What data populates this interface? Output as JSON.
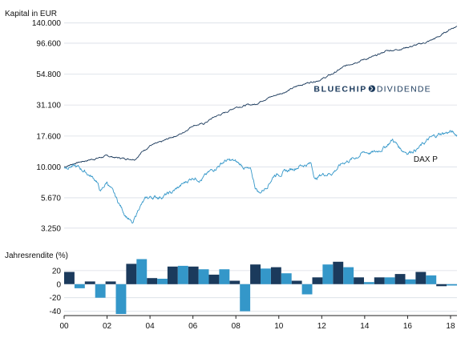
{
  "colors": {
    "strategy": "#1b3a5c",
    "index": "#3497c9",
    "background": "#ffffff",
    "grid": "#d9dee6",
    "axis": "#222222",
    "text": "#111111"
  },
  "chart_data": [
    {
      "type": "line",
      "ylabel": "Kapital in EUR",
      "y_scale": "log",
      "yticks": [
        "140.000",
        "96.600",
        "54.800",
        "31.100",
        "17.600",
        "10.000",
        "5.670",
        "3.250"
      ],
      "ylim": [
        2600,
        150000
      ],
      "xlim": [
        2000.0,
        2018.3
      ],
      "grid": "horizontal",
      "series": [
        {
          "name": "BLUECHIP DIVIDENDE",
          "color": "#1b3a5c",
          "points": [
            [
              2000.0,
              10000
            ],
            [
              2000.5,
              10700
            ],
            [
              2001.0,
              11200
            ],
            [
              2001.5,
              11700
            ],
            [
              2002.0,
              12200
            ],
            [
              2002.5,
              11800
            ],
            [
              2003.0,
              11600
            ],
            [
              2003.3,
              11600
            ],
            [
              2003.7,
              13500
            ],
            [
              2004.0,
              14800
            ],
            [
              2004.5,
              15600
            ],
            [
              2005.0,
              17200
            ],
            [
              2005.5,
              18500
            ],
            [
              2006.0,
              21500
            ],
            [
              2006.5,
              22000
            ],
            [
              2007.0,
              25000
            ],
            [
              2007.5,
              27000
            ],
            [
              2008.0,
              30000
            ],
            [
              2008.5,
              31000
            ],
            [
              2008.9,
              31500
            ],
            [
              2009.3,
              34500
            ],
            [
              2010.0,
              38000
            ],
            [
              2010.5,
              41000
            ],
            [
              2011.0,
              45000
            ],
            [
              2011.6,
              48000
            ],
            [
              2012.0,
              50000
            ],
            [
              2012.5,
              55000
            ],
            [
              2013.0,
              62000
            ],
            [
              2013.5,
              68000
            ],
            [
              2014.0,
              72000
            ],
            [
              2014.5,
              76000
            ],
            [
              2015.0,
              84000
            ],
            [
              2015.5,
              86000
            ],
            [
              2016.0,
              90000
            ],
            [
              2016.5,
              94000
            ],
            [
              2017.0,
              100000
            ],
            [
              2017.5,
              110000
            ],
            [
              2018.0,
              126000
            ],
            [
              2018.3,
              132000
            ]
          ]
        },
        {
          "name": "DAX P",
          "color": "#3497c9",
          "points": [
            [
              2000.0,
              10000
            ],
            [
              2000.3,
              10200
            ],
            [
              2000.7,
              9800
            ],
            [
              2001.0,
              9100
            ],
            [
              2001.5,
              7800
            ],
            [
              2001.7,
              6300
            ],
            [
              2002.0,
              7600
            ],
            [
              2002.5,
              5300
            ],
            [
              2002.8,
              4300
            ],
            [
              2003.0,
              3900
            ],
            [
              2003.2,
              3450
            ],
            [
              2003.5,
              4800
            ],
            [
              2003.8,
              5500
            ],
            [
              2004.0,
              5700
            ],
            [
              2004.5,
              5800
            ],
            [
              2005.0,
              6200
            ],
            [
              2005.5,
              7200
            ],
            [
              2006.0,
              8300
            ],
            [
              2006.4,
              8000
            ],
            [
              2006.8,
              9100
            ],
            [
              2007.0,
              9700
            ],
            [
              2007.5,
              11200
            ],
            [
              2007.9,
              11100
            ],
            [
              2008.3,
              10200
            ],
            [
              2008.7,
              9200
            ],
            [
              2008.9,
              6900
            ],
            [
              2009.1,
              6200
            ],
            [
              2009.4,
              6900
            ],
            [
              2009.8,
              8700
            ],
            [
              2010.0,
              8800
            ],
            [
              2010.5,
              9400
            ],
            [
              2011.0,
              10300
            ],
            [
              2011.5,
              10600
            ],
            [
              2011.7,
              8000
            ],
            [
              2012.0,
              8700
            ],
            [
              2012.5,
              9000
            ],
            [
              2013.0,
              10800
            ],
            [
              2013.5,
              11700
            ],
            [
              2014.0,
              13100
            ],
            [
              2014.5,
              13000
            ],
            [
              2015.0,
              14700
            ],
            [
              2015.3,
              16500
            ],
            [
              2015.7,
              13800
            ],
            [
              2016.0,
              13100
            ],
            [
              2016.5,
              14100
            ],
            [
              2017.0,
              16600
            ],
            [
              2017.5,
              18300
            ],
            [
              2018.0,
              19000
            ],
            [
              2018.3,
              17900
            ]
          ]
        }
      ],
      "annotations": [
        {
          "brand_first": "BLUECHIP",
          "brand_second": "DIVIDENDE",
          "at_x": 2017.1,
          "at_y": 42000
        },
        {
          "label": "DAX P",
          "at_x": 2017.4,
          "at_y": 11000
        }
      ]
    },
    {
      "type": "bar",
      "ylabel": "Jahresrendite (%)",
      "yticks": [
        "20",
        "0",
        "-20",
        "-40"
      ],
      "ylim": [
        -44,
        34
      ],
      "categories": [
        "2000",
        "2001",
        "2002",
        "2003",
        "2004",
        "2005",
        "2006",
        "2007",
        "2008",
        "2009",
        "2010",
        "2011",
        "2012",
        "2013",
        "2014",
        "2015",
        "2016",
        "2017",
        "2018"
      ],
      "xticks": [
        "00",
        "02",
        "04",
        "06",
        "08",
        "10",
        "12",
        "14",
        "16",
        "18"
      ],
      "series": [
        {
          "name": "BLUECHIP DIVIDENDE",
          "color": "#1b3a5c",
          "values": [
            18,
            4,
            4,
            30,
            9,
            26,
            26,
            14,
            5,
            29,
            25,
            5,
            10,
            33,
            10,
            10,
            15,
            18,
            -3
          ]
        },
        {
          "name": "DAX P",
          "color": "#3497c9",
          "values": [
            -6,
            -20,
            -44,
            37,
            8,
            27,
            22,
            22,
            -40,
            23,
            16,
            -15,
            29,
            25,
            3,
            10,
            7,
            13,
            -2
          ]
        }
      ]
    }
  ]
}
